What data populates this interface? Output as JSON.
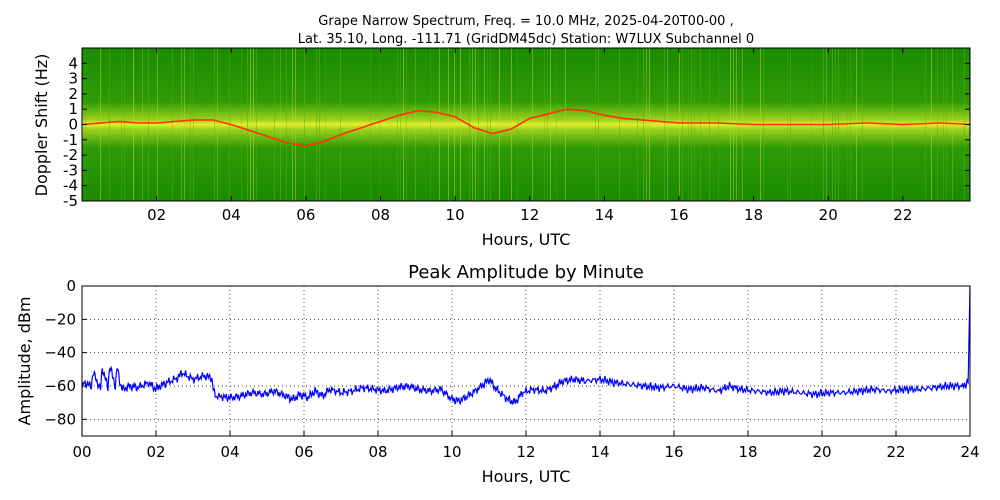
{
  "figure": {
    "title_line1": "Grape Narrow Spectrum, Freq. = 10.0 MHz, 2025-04-20T00-00 ,",
    "title_line2": "Lat.  35.10, Long. -111.71 (GridDM45dc) Station: W7LUX Subchannel 0"
  },
  "colors": {
    "spectrogram_background": "#1a8a00",
    "spectrogram_mid": "#8ccc1e",
    "spectrogram_high": "#f0f020",
    "spectrogram_peak": "#ff3300",
    "amplitude_line": "#0000ff",
    "grid": "#000000"
  },
  "chart_data": [
    {
      "type": "heatmap",
      "xlabel": "Hours, UTC",
      "ylabel": "Doppler Shift (Hz)",
      "xlim": [
        0,
        23.8
      ],
      "ylim": [
        -5,
        5
      ],
      "x_ticks": [
        "02",
        "04",
        "06",
        "08",
        "10",
        "12",
        "14",
        "16",
        "18",
        "20",
        "22"
      ],
      "x_tick_values": [
        2,
        4,
        6,
        8,
        10,
        12,
        14,
        16,
        18,
        20,
        22
      ],
      "y_ticks": [
        "4",
        "3",
        "2",
        "1",
        "0",
        "-1",
        "-2",
        "-3",
        "-4",
        "-5"
      ],
      "y_tick_values": [
        4,
        3,
        2,
        1,
        0,
        -1,
        -2,
        -3,
        -4,
        -5
      ],
      "doppler_trace": {
        "x": [
          0,
          0.5,
          1,
          1.5,
          2,
          2.5,
          3,
          3.5,
          4,
          4.5,
          5,
          5.5,
          6,
          6.5,
          7,
          7.5,
          8,
          8.5,
          9,
          9.5,
          10,
          10.5,
          11,
          11.5,
          12,
          12.5,
          13,
          13.5,
          14,
          14.5,
          15,
          15.5,
          16,
          17,
          18,
          19,
          20,
          21,
          22,
          23,
          23.8
        ],
        "y": [
          0,
          0.1,
          0.2,
          0.1,
          0.1,
          0.2,
          0.3,
          0.3,
          0,
          -0.4,
          -0.8,
          -1.2,
          -1.4,
          -1.1,
          -0.6,
          -0.2,
          0.2,
          0.6,
          0.9,
          0.8,
          0.5,
          -0.2,
          -0.6,
          -0.3,
          0.4,
          0.7,
          1.0,
          0.9,
          0.6,
          0.4,
          0.3,
          0.2,
          0.1,
          0.1,
          0,
          0,
          0,
          0.1,
          0,
          0.1,
          0
        ]
      }
    },
    {
      "type": "line",
      "title": "Peak Amplitude by Minute",
      "xlabel": "Hours, UTC",
      "ylabel": "Amplitude, dBm",
      "xlim": [
        0,
        24
      ],
      "ylim": [
        -90,
        0
      ],
      "grid": true,
      "x_ticks": [
        "00",
        "02",
        "04",
        "06",
        "08",
        "10",
        "12",
        "14",
        "16",
        "18",
        "20",
        "22",
        "24"
      ],
      "x_tick_values": [
        0,
        2,
        4,
        6,
        8,
        10,
        12,
        14,
        16,
        18,
        20,
        22,
        24
      ],
      "y_ticks": [
        "0",
        "−20",
        "−40",
        "−60",
        "−80"
      ],
      "y_tick_values": [
        0,
        -20,
        -40,
        -60,
        -80
      ],
      "series": [
        {
          "x": [
            0,
            0.05,
            0.25,
            0.3,
            0.5,
            0.55,
            0.7,
            0.75,
            0.9,
            0.95,
            1.05,
            1.1,
            1.3,
            1.5,
            1.8,
            2.0,
            2.1,
            2.3,
            2.6,
            2.7,
            3.0,
            3.3,
            3.5,
            3.55,
            3.6,
            4.0,
            4.3,
            4.6,
            4.9,
            5.2,
            5.5,
            5.7,
            5.9,
            6.1,
            6.3,
            6.5,
            6.7,
            7.0,
            7.3,
            7.6,
            7.9,
            8.2,
            8.5,
            8.8,
            9.1,
            9.4,
            9.7,
            10.0,
            10.2,
            10.5,
            10.8,
            11.0,
            11.2,
            11.5,
            11.7,
            11.9,
            12.2,
            12.5,
            12.8,
            13.0,
            13.3,
            13.6,
            14.0,
            14.4,
            14.8,
            15.2,
            15.6,
            16.0,
            16.4,
            16.8,
            17.2,
            17.5,
            17.8,
            18.2,
            18.6,
            19.0,
            19.4,
            19.8,
            20.2,
            20.6,
            21.0,
            21.4,
            21.8,
            22.2,
            22.6,
            23.0,
            23.4,
            23.8,
            23.95,
            24.0
          ],
          "y": [
            -62,
            -58,
            -60,
            -52,
            -62,
            -49,
            -61,
            -48,
            -60,
            -49,
            -60,
            -62,
            -60,
            -61,
            -58,
            -62,
            -60,
            -58,
            -55,
            -52,
            -56,
            -54,
            -55,
            -62,
            -66,
            -67,
            -66,
            -64,
            -65,
            -63,
            -66,
            -68,
            -65,
            -67,
            -63,
            -66,
            -62,
            -64,
            -63,
            -61,
            -62,
            -63,
            -61,
            -60,
            -62,
            -63,
            -62,
            -68,
            -69,
            -65,
            -60,
            -56,
            -62,
            -68,
            -70,
            -64,
            -62,
            -63,
            -60,
            -57,
            -56,
            -57,
            -56,
            -58,
            -59,
            -60,
            -61,
            -60,
            -62,
            -61,
            -63,
            -60,
            -62,
            -63,
            -64,
            -63,
            -64,
            -65,
            -64,
            -64,
            -63,
            -62,
            -63,
            -62,
            -62,
            -61,
            -60,
            -60,
            -58,
            0
          ]
        }
      ]
    }
  ]
}
